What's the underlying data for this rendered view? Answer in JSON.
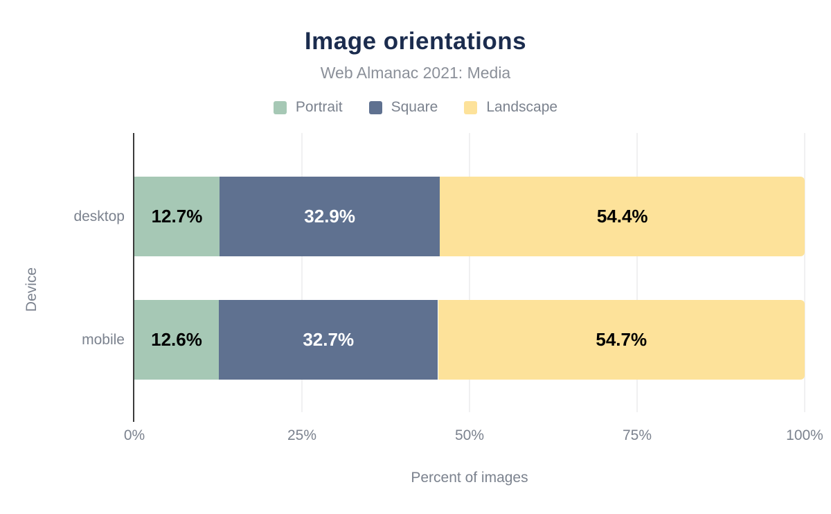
{
  "chart_data": {
    "type": "bar",
    "stacked": true,
    "orientation": "horizontal",
    "title": "Image orientations",
    "subtitle": "Web Almanac 2021: Media",
    "xlabel": "Percent of images",
    "ylabel": "Device",
    "categories": [
      "desktop",
      "mobile"
    ],
    "series": [
      {
        "name": "Portrait",
        "color": "#a6c8b5",
        "label_color": "#000000",
        "values": [
          12.7,
          12.6
        ],
        "labels": [
          "12.7%",
          "12.6%"
        ]
      },
      {
        "name": "Square",
        "color": "#5f7190",
        "label_color": "#ffffff",
        "values": [
          32.9,
          32.7
        ],
        "labels": [
          "32.9%",
          "32.7%"
        ]
      },
      {
        "name": "Landscape",
        "color": "#fde29a",
        "label_color": "#000000",
        "values": [
          54.4,
          54.7
        ],
        "labels": [
          "54.4%",
          "54.7%"
        ]
      }
    ],
    "xlim": [
      0,
      100
    ],
    "x_ticks": [
      {
        "label": "0%",
        "value": 0
      },
      {
        "label": "25%",
        "value": 25
      },
      {
        "label": "50%",
        "value": 50
      },
      {
        "label": "75%",
        "value": 75
      },
      {
        "label": "100%",
        "value": 100
      }
    ],
    "grid": "vertical",
    "legend_position": "top",
    "colors": {
      "title": "#1b2c4e",
      "text": "#7b828e",
      "subtitle": "#8b9099",
      "gridline": "#f0f0f1",
      "axis_line": "#3a3a3a",
      "background": "#ffffff"
    }
  }
}
